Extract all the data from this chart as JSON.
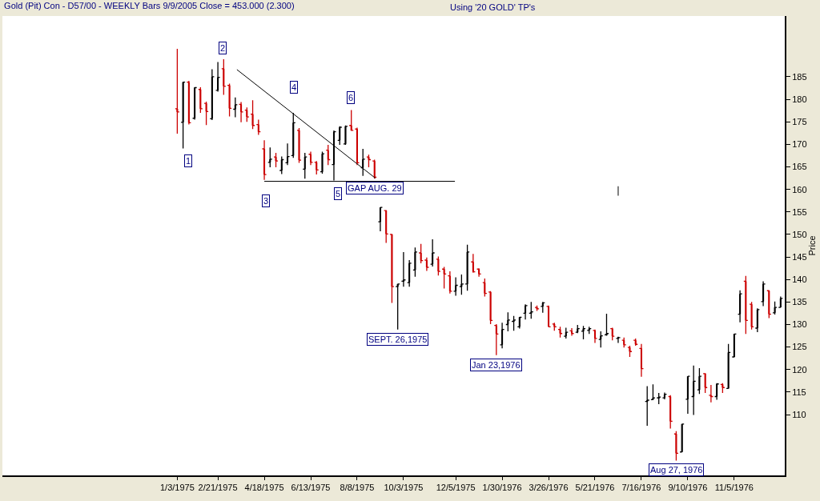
{
  "chart_data": {
    "type": "candlestick",
    "title": "Gold (Pit) Con - D57/00 - WEEKLY Bars 9/9/2005 Close = 453.000 (2.300)",
    "subtitle": "Using '20 GOLD' TP's",
    "ylabel": "Price",
    "x": [
      "1975-01-03",
      "1975-01-10",
      "1975-01-17",
      "1975-01-24",
      "1975-01-31",
      "1975-02-07",
      "1975-02-14",
      "1975-02-21",
      "1975-02-28",
      "1975-03-07",
      "1975-03-14",
      "1975-03-21",
      "1975-03-28",
      "1975-04-04",
      "1975-04-11",
      "1975-04-18",
      "1975-04-25",
      "1975-05-02",
      "1975-05-09",
      "1975-05-16",
      "1975-05-23",
      "1975-05-30",
      "1975-06-06",
      "1975-06-13",
      "1975-06-20",
      "1975-06-27",
      "1975-07-04",
      "1975-07-11",
      "1975-07-18",
      "1975-07-25",
      "1975-08-01",
      "1975-08-08",
      "1975-08-15",
      "1975-08-22",
      "1975-08-29",
      "1975-09-05",
      "1975-09-12",
      "1975-09-19",
      "1975-09-26",
      "1975-10-03",
      "1975-10-10",
      "1975-10-17",
      "1975-10-24",
      "1975-10-31",
      "1975-11-07",
      "1975-11-14",
      "1975-11-21",
      "1975-11-28",
      "1975-12-05",
      "1975-12-12",
      "1975-12-19",
      "1975-12-26",
      "1976-01-02",
      "1976-01-09",
      "1976-01-16",
      "1976-01-23",
      "1976-01-30",
      "1976-02-06",
      "1976-02-13",
      "1976-02-20",
      "1976-02-27",
      "1976-03-05",
      "1976-03-12",
      "1976-03-19",
      "1976-03-26",
      "1976-04-02",
      "1976-04-09",
      "1976-04-16",
      "1976-04-23",
      "1976-04-30",
      "1976-05-07",
      "1976-05-14",
      "1976-05-21",
      "1976-05-28",
      "1976-06-04",
      "1976-06-11",
      "1976-06-18",
      "1976-06-25",
      "1976-07-02",
      "1976-07-09",
      "1976-07-16",
      "1976-07-23",
      "1976-07-30",
      "1976-08-06",
      "1976-08-13",
      "1976-08-20",
      "1976-08-27",
      "1976-09-03",
      "1976-09-10",
      "1976-09-17",
      "1976-09-24",
      "1976-10-01",
      "1976-10-08",
      "1976-10-15",
      "1976-10-22",
      "1976-10-29",
      "1976-11-05",
      "1976-11-12",
      "1976-11-19",
      "1976-11-26",
      "1976-12-03",
      "1976-12-10",
      "1976-12-17",
      "1976-12-24",
      "1976-12-31"
    ],
    "ohlc": [
      [
        177.9,
        191.2,
        172.4,
        177.2
      ],
      [
        174.9,
        183.9,
        169.1,
        183.8
      ],
      [
        183.8,
        184.1,
        174.4,
        174.8
      ],
      [
        175.8,
        182.7,
        175.5,
        182.6
      ],
      [
        182.2,
        182.7,
        177.0,
        177.9
      ],
      [
        179.1,
        179.5,
        174.3,
        177.3
      ],
      [
        175.7,
        186.7,
        175.4,
        185.0
      ],
      [
        182.0,
        188.3,
        181.7,
        184.9
      ],
      [
        186.8,
        188.9,
        181.0,
        182.9
      ],
      [
        183.1,
        183.5,
        176.2,
        178.0
      ],
      [
        177.8,
        180.4,
        176.0,
        178.8
      ],
      [
        178.9,
        179.4,
        174.9,
        177.2
      ],
      [
        177.6,
        178.2,
        175.0,
        176.1
      ],
      [
        176.7,
        179.8,
        173.4,
        174.2
      ],
      [
        174.4,
        175.5,
        172.1,
        172.8
      ],
      [
        169.0,
        170.9,
        162.1,
        163.3
      ],
      [
        166.0,
        169.3,
        164.9,
        166.7
      ],
      [
        167.2,
        168.1,
        164.9,
        166.3
      ],
      [
        164.2,
        167.3,
        163.4,
        166.6
      ],
      [
        165.9,
        170.2,
        165.4,
        167.3
      ],
      [
        167.5,
        177.0,
        167.0,
        174.8
      ],
      [
        173.1,
        173.6,
        165.9,
        166.5
      ],
      [
        164.5,
        168.1,
        162.4,
        167.2
      ],
      [
        167.8,
        168.4,
        165.4,
        166.0
      ],
      [
        166.0,
        166.3,
        163.3,
        164.3
      ],
      [
        163.9,
        168.4,
        163.5,
        167.9
      ],
      [
        168.7,
        169.9,
        165.4,
        166.6
      ],
      [
        165.5,
        173.1,
        162.0,
        172.8
      ],
      [
        170.9,
        174.0,
        169.9,
        173.8
      ],
      [
        170.1,
        174.2,
        169.9,
        174.0
      ],
      [
        174.2,
        177.6,
        173.0,
        173.1
      ],
      [
        173.4,
        173.7,
        165.4,
        165.9
      ],
      [
        164.8,
        169.0,
        163.0,
        166.7
      ],
      [
        167.2,
        167.7,
        164.9,
        166.6
      ],
      [
        166.3,
        166.6,
        162.4,
        162.7
      ],
      [
        152.8,
        156.0,
        150.7,
        156.0
      ],
      [
        155.3,
        155.4,
        148.1,
        150.1
      ],
      [
        150.0,
        150.1,
        134.8,
        138.4
      ],
      [
        138.4,
        139.0,
        128.9,
        139.0
      ],
      [
        139.6,
        146.1,
        138.4,
        139.9
      ],
      [
        139.3,
        144.3,
        138.4,
        143.6
      ],
      [
        142.1,
        147.1,
        140.6,
        146.1
      ],
      [
        145.9,
        147.9,
        143.6,
        144.2
      ],
      [
        144.3,
        144.9,
        141.9,
        142.7
      ],
      [
        143.4,
        148.9,
        142.9,
        145.9
      ],
      [
        144.5,
        145.1,
        140.9,
        141.8
      ],
      [
        142.3,
        142.8,
        138.0,
        141.2
      ],
      [
        140.8,
        141.8,
        136.9,
        137.4
      ],
      [
        137.4,
        140.5,
        136.4,
        138.7
      ],
      [
        138.4,
        141.1,
        136.6,
        139.0
      ],
      [
        139.0,
        147.7,
        137.5,
        146.1
      ],
      [
        143.9,
        145.7,
        141.5,
        141.7
      ],
      [
        142.3,
        142.5,
        140.6,
        141.2
      ],
      [
        139.3,
        140.2,
        136.2,
        136.9
      ],
      [
        137.2,
        137.4,
        130.1,
        130.9
      ],
      [
        129.8,
        130.1,
        123.2,
        127.9
      ],
      [
        125.5,
        130.4,
        124.7,
        128.9
      ],
      [
        130.0,
        132.7,
        128.5,
        131.0
      ],
      [
        130.7,
        131.9,
        128.6,
        131.0
      ],
      [
        129.5,
        131.7,
        129.1,
        131.6
      ],
      [
        132.5,
        134.5,
        131.1,
        134.2
      ],
      [
        132.5,
        135.0,
        131.3,
        132.8
      ],
      [
        133.8,
        134.2,
        133.0,
        133.5
      ],
      [
        134.0,
        135.0,
        132.6,
        134.8
      ],
      [
        134.0,
        134.2,
        129.5,
        129.5
      ],
      [
        130.1,
        130.4,
        128.6,
        129.5
      ],
      [
        128.9,
        129.5,
        127.1,
        128.0
      ],
      [
        127.4,
        129.3,
        126.9,
        128.3
      ],
      [
        128.6,
        129.2,
        127.5,
        128.0
      ],
      [
        128.3,
        129.9,
        128.1,
        129.1
      ],
      [
        128.5,
        129.7,
        126.7,
        129.1
      ],
      [
        128.7,
        129.5,
        127.9,
        129.1
      ],
      [
        128.7,
        128.9,
        125.9,
        126.9
      ],
      [
        126.7,
        128.5,
        124.9,
        127.5
      ],
      [
        127.7,
        132.4,
        127.5,
        128.0
      ],
      [
        129.1,
        129.3,
        126.5,
        127.4
      ],
      [
        126.9,
        127.3,
        125.9,
        127.1
      ],
      [
        126.5,
        127.1,
        124.9,
        125.5
      ],
      [
        124.9,
        125.3,
        122.8,
        124.0
      ],
      [
        126.5,
        126.9,
        125.3,
        125.6
      ],
      [
        124.7,
        125.7,
        118.4,
        120.2
      ],
      [
        112.9,
        116.3,
        107.5,
        113.2
      ],
      [
        113.3,
        116.7,
        113.3,
        113.7
      ],
      [
        113.7,
        114.8,
        112.3,
        113.9
      ],
      [
        113.7,
        114.9,
        113.4,
        114.5
      ],
      [
        114.0,
        114.3,
        106.9,
        108.5
      ],
      [
        105.7,
        106.3,
        99.8,
        101.4
      ],
      [
        101.7,
        107.9,
        101.7,
        107.9
      ],
      [
        113.4,
        118.5,
        110.2,
        118.5
      ],
      [
        114.0,
        120.9,
        109.9,
        117.4
      ],
      [
        115.5,
        120.3,
        114.6,
        118.5
      ],
      [
        119.1,
        119.2,
        114.8,
        116.0
      ],
      [
        114.3,
        116.6,
        112.7,
        114.0
      ],
      [
        114.0,
        117.0,
        113.3,
        116.8
      ],
      [
        116.7,
        117.0,
        114.8,
        116.0
      ],
      [
        115.8,
        125.7,
        115.8,
        123.8
      ],
      [
        122.8,
        127.9,
        122.7,
        127.9
      ],
      [
        132.3,
        137.6,
        130.5,
        136.8
      ],
      [
        139.6,
        140.8,
        127.9,
        130.9
      ],
      [
        134.5,
        135.0,
        128.9,
        129.5
      ],
      [
        129.2,
        133.6,
        128.3,
        133.3
      ],
      [
        135.1,
        139.6,
        134.1,
        139.0
      ],
      [
        137.5,
        137.6,
        131.4,
        132.3
      ],
      [
        132.6,
        135.1,
        132.2,
        133.8
      ],
      [
        133.8,
        136.2,
        133.8,
        135.8
      ]
    ],
    "colors": [
      "#cc0000",
      "#000000",
      "#cc0000",
      "#000000",
      "#cc0000",
      "#cc0000",
      "#000000",
      "#000000",
      "#cc0000",
      "#cc0000",
      "#000000",
      "#cc0000",
      "#cc0000",
      "#cc0000",
      "#cc0000",
      "#cc0000",
      "#000000",
      "#cc0000",
      "#000000",
      "#000000",
      "#000000",
      "#cc0000",
      "#000000",
      "#cc0000",
      "#cc0000",
      "#000000",
      "#cc0000",
      "#000000",
      "#000000",
      "#000000",
      "#cc0000",
      "#cc0000",
      "#000000",
      "#cc0000",
      "#cc0000",
      "#000000",
      "#cc0000",
      "#cc0000",
      "#000000",
      "#000000",
      "#000000",
      "#000000",
      "#cc0000",
      "#cc0000",
      "#000000",
      "#cc0000",
      "#cc0000",
      "#cc0000",
      "#000000",
      "#000000",
      "#000000",
      "#cc0000",
      "#cc0000",
      "#cc0000",
      "#cc0000",
      "#cc0000",
      "#000000",
      "#000000",
      "#000000",
      "#000000",
      "#000000",
      "#000000",
      "#cc0000",
      "#000000",
      "#cc0000",
      "#cc0000",
      "#cc0000",
      "#000000",
      "#cc0000",
      "#000000",
      "#000000",
      "#000000",
      "#cc0000",
      "#000000",
      "#000000",
      "#cc0000",
      "#000000",
      "#cc0000",
      "#cc0000",
      "#cc0000",
      "#cc0000",
      "#000000",
      "#000000",
      "#000000",
      "#000000",
      "#cc0000",
      "#cc0000",
      "#000000",
      "#000000",
      "#000000",
      "#000000",
      "#cc0000",
      "#cc0000",
      "#000000",
      "#cc0000",
      "#000000",
      "#000000",
      "#000000",
      "#cc0000",
      "#cc0000",
      "#000000",
      "#000000",
      "#cc0000",
      "#000000",
      "#000000"
    ],
    "series": [
      {
        "type": "line",
        "x": [
          "1975-03-16",
          "1975-08-30"
        ],
        "values": [
          186.6,
          162.5
        ],
        "color": "#000000"
      },
      {
        "type": "line",
        "x": [
          "1975-04-18",
          "1975-12-04"
        ],
        "values": [
          161.8,
          161.8
        ],
        "color": "#000000"
      },
      {
        "type": "line",
        "x": [
          "1976-06-18",
          "1976-06-18"
        ],
        "values": [
          160.7,
          158.6
        ],
        "color": "#000000"
      }
    ],
    "xlim": [
      "1974-06-06",
      "1977-01-05"
    ],
    "ylim": [
      96.5,
      198.5
    ],
    "xticks": [
      {
        "value": "1975-01-03",
        "label": "1/3/1975"
      },
      {
        "value": "1975-02-21",
        "label": "2/21/1975"
      },
      {
        "value": "1975-04-18",
        "label": "4/18/1975"
      },
      {
        "value": "1975-06-13",
        "label": "6/13/1975"
      },
      {
        "value": "1975-08-08",
        "label": "8/8/1975"
      },
      {
        "value": "1975-10-03",
        "label": "10/3/1975"
      },
      {
        "value": "1975-12-05",
        "label": "12/5/1975"
      },
      {
        "value": "1976-01-30",
        "label": "1/30/1976"
      },
      {
        "value": "1976-03-26",
        "label": "3/26/1976"
      },
      {
        "value": "1976-05-21",
        "label": "5/21/1976"
      },
      {
        "value": "1976-07-16",
        "label": "7/16/1976"
      },
      {
        "value": "1976-09-10",
        "label": "9/10/1976"
      },
      {
        "value": "1976-11-05",
        "label": "11/5/1976"
      }
    ],
    "yticks": [
      110,
      115,
      120,
      125,
      130,
      135,
      140,
      145,
      150,
      155,
      160,
      165,
      170,
      175,
      180,
      185
    ],
    "grid": false,
    "annotations": [
      {
        "text": "1",
        "x": "1975-01-16",
        "y": 166.4
      },
      {
        "text": "2",
        "x": "1975-02-27",
        "y": 191.4
      },
      {
        "text": "3",
        "x": "1975-04-20",
        "y": 157.5
      },
      {
        "text": "4",
        "x": "1975-05-24",
        "y": 182.6
      },
      {
        "text": "5",
        "x": "1975-07-16",
        "y": 159.1
      },
      {
        "text": "6",
        "x": "1975-07-31",
        "y": 180.3
      },
      {
        "text": "GAP AUG. 29",
        "x": "1975-08-29",
        "y": 162.4
      },
      {
        "text": "SEPT. 26,1975",
        "x": "1975-09-26",
        "y": 128.9
      },
      {
        "text": "Jan 23,1976",
        "x": "1976-01-23",
        "y": 123.2
      },
      {
        "text": "Aug 27, 1976",
        "x": "1976-08-27",
        "y": 99.8
      }
    ]
  }
}
